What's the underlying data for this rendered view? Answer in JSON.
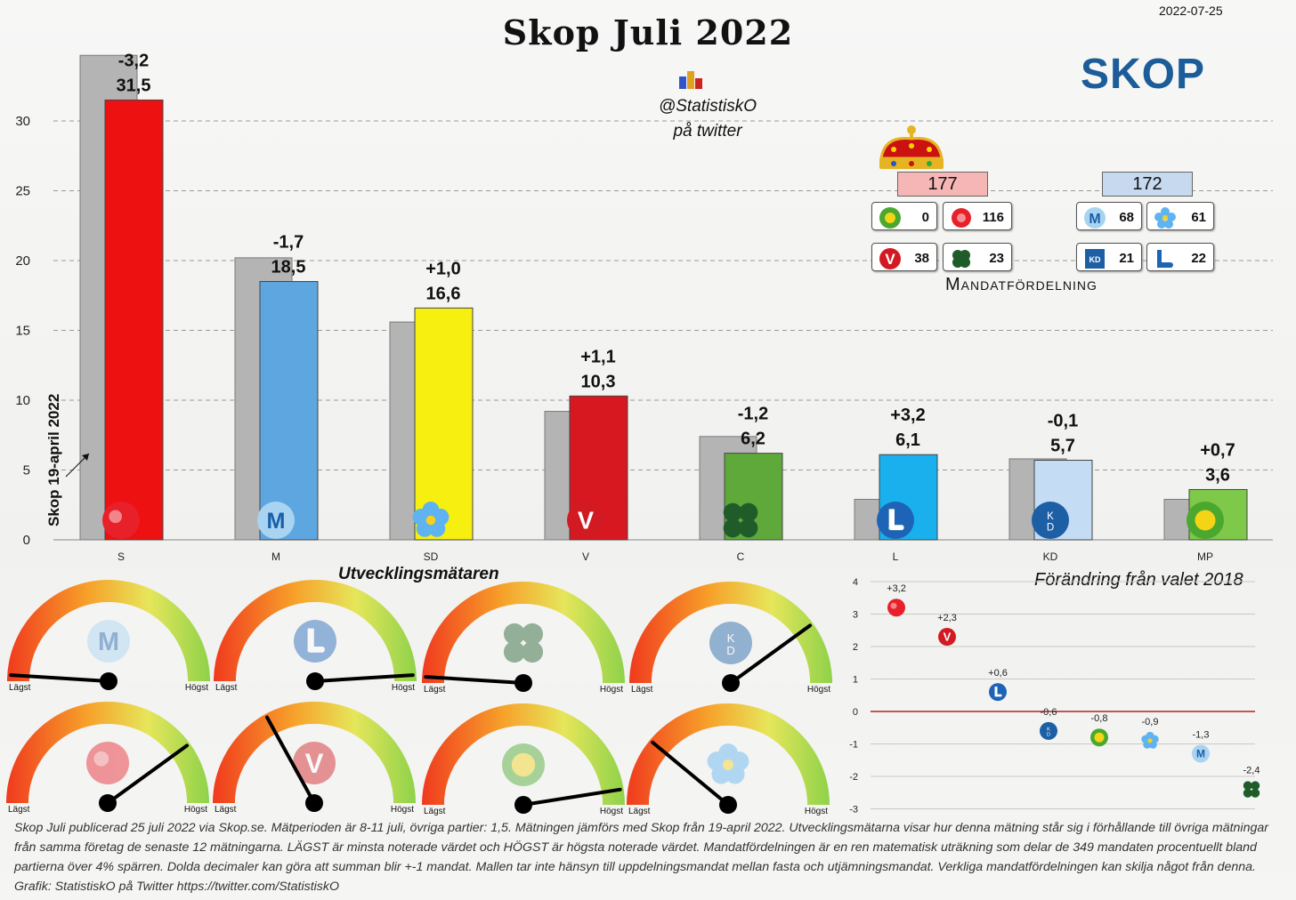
{
  "title": "Skop Juli 2022",
  "date": "2022-07-25",
  "logo_text": "SKOP",
  "twitter_handle": "@StatistiskO",
  "twitter_sub": "på twitter",
  "colors": {
    "S": "#ee1111",
    "M": "#5ea6e0",
    "SD": "#f7ef10",
    "V": "#d81820",
    "C": "#5fa83a",
    "L": "#1ab0ee",
    "KD": "#c4ddf5",
    "MP": "#7ec84a",
    "prev": "#b4b4b4"
  },
  "chart_data": [
    {
      "type": "bar",
      "title": "Skop Juli 2022",
      "categories": [
        "S",
        "M",
        "SD",
        "V",
        "C",
        "L",
        "KD",
        "MP"
      ],
      "series": [
        {
          "name": "Skop 19-april 2022",
          "values": [
            34.7,
            20.2,
            15.6,
            9.2,
            7.4,
            2.9,
            5.8,
            2.9
          ]
        },
        {
          "values": [
            31.5,
            18.5,
            16.6,
            10.3,
            6.2,
            6.1,
            5.7,
            3.6
          ]
        }
      ],
      "change_labels": [
        "-3,2",
        "-1,7",
        "+1,0",
        "+1,1",
        "-1,2",
        "+3,2",
        "-0,1",
        "+0,7"
      ],
      "value_labels": [
        "31,5",
        "18,5",
        "16,6",
        "10,3",
        "6,2",
        "6,1",
        "5,7",
        "3,6"
      ],
      "ylim": [
        0,
        35
      ],
      "yticks": [
        0,
        5,
        10,
        15,
        20,
        25,
        30
      ],
      "grid": true,
      "prev_label": "Skop 19-april 2022"
    },
    {
      "type": "scatter",
      "title": "Förändring från valet 2018",
      "points": [
        {
          "party": "S",
          "value": 3.2,
          "label": "+3,2"
        },
        {
          "party": "V",
          "value": 2.3,
          "label": "+2,3"
        },
        {
          "party": "L",
          "value": 0.6,
          "label": "+0,6"
        },
        {
          "party": "KD",
          "value": -0.6,
          "label": "-0,6"
        },
        {
          "party": "MP",
          "value": -0.8,
          "label": "-0,8"
        },
        {
          "party": "SD",
          "value": -0.9,
          "label": "-0,9"
        },
        {
          "party": "M",
          "value": -1.3,
          "label": "-1,3"
        },
        {
          "party": "C",
          "value": -2.4,
          "label": "-2,4"
        }
      ],
      "ylim": [
        -3,
        4
      ],
      "yticks": [
        4,
        3,
        2,
        1,
        0,
        -1,
        -2,
        -3
      ]
    }
  ],
  "seats": {
    "title": "Mandatfördelning",
    "left_total": "177",
    "right_total": "172",
    "left": [
      {
        "party": "MP",
        "seats": "0"
      },
      {
        "party": "S",
        "seats": "116"
      },
      {
        "party": "V",
        "seats": "38"
      },
      {
        "party": "C",
        "seats": "23"
      }
    ],
    "right": [
      {
        "party": "M",
        "seats": "68"
      },
      {
        "party": "SD",
        "seats": "61"
      },
      {
        "party": "KD",
        "seats": "21"
      },
      {
        "party": "L",
        "seats": "22"
      }
    ]
  },
  "gauges": {
    "title": "Utvecklingsmätaren",
    "low_label": "Lägst",
    "high_label": "Högst",
    "items": [
      {
        "party": "M",
        "level": 0.02
      },
      {
        "party": "L",
        "level": 0.98
      },
      {
        "party": "C",
        "level": 0.02
      },
      {
        "party": "KD",
        "level": 0.8
      },
      {
        "party": "S",
        "level": 0.8
      },
      {
        "party": "V",
        "level": 0.34
      },
      {
        "party": "MP",
        "level": 0.95
      },
      {
        "party": "SD",
        "level": 0.22
      }
    ]
  },
  "footer": "Skop Juli publicerad 25 juli 2022 via Skop.se. Mätperioden är 8-11 juli, övriga partier: 1,5. Mätningen jämförs med Skop från 19-april 2022. Utvecklingsmätarna visar hur denna mätning står sig i förhållande till övriga mätningar från samma företag de senaste 12 mätningarna. LÄGST är minsta noterade värdet och HÖGST är högsta noterade värdet. Mandatfördelningen är en ren matematisk uträkning som delar de 349 mandaten procentuellt bland partierna över 4% spärren. Dolda decimaler kan göra att summan blir +-1 mandat. Mallen tar inte hänsyn till uppdelningsmandat mellan fasta och  utjämningsmandat. Verkliga mandatfördelningen kan skilja något från denna. Grafik: StatistiskO på Twitter  https://twitter.com/StatistiskO"
}
